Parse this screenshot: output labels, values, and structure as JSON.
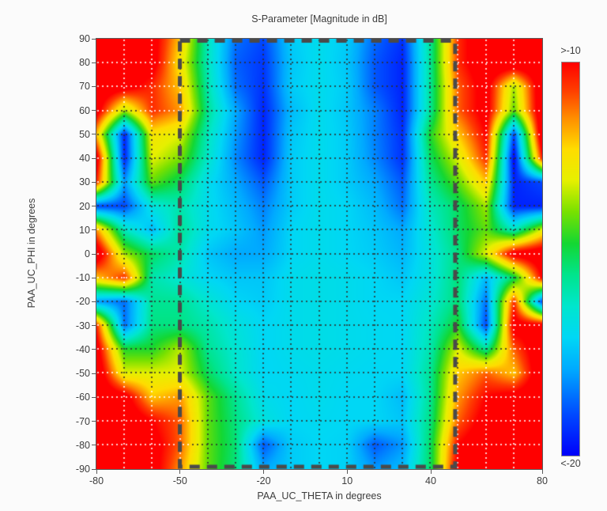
{
  "chart_data": {
    "type": "heatmap",
    "title": "S-Parameter [Magnitude in dB]",
    "xlabel": "PAA_UC_THETA in degrees",
    "ylabel": "PAA_UC_PHI in degrees",
    "xlim": [
      -80,
      80
    ],
    "ylim": [
      -90,
      90
    ],
    "x_ticks": [
      -80,
      -50,
      -20,
      10,
      40,
      80
    ],
    "y_ticks": [
      90,
      80,
      70,
      60,
      50,
      40,
      30,
      20,
      10,
      0,
      -10,
      -20,
      -30,
      -40,
      -50,
      -60,
      -70,
      -80,
      -90
    ],
    "grid_step_degrees": 10,
    "grid_on": true,
    "colorbar": {
      "max_label": ">-10",
      "min_label": "<-20",
      "vmax": -10,
      "vmin": -20,
      "position": "right"
    },
    "colormap_stops": [
      [
        0.0,
        [
          0,
          0,
          250
        ]
      ],
      [
        0.1,
        [
          0,
          70,
          255
        ]
      ],
      [
        0.22,
        [
          0,
          170,
          255
        ]
      ],
      [
        0.3,
        [
          0,
          215,
          245
        ]
      ],
      [
        0.38,
        [
          0,
          230,
          205
        ]
      ],
      [
        0.46,
        [
          0,
          228,
          140
        ]
      ],
      [
        0.54,
        [
          20,
          215,
          50
        ]
      ],
      [
        0.62,
        [
          120,
          225,
          0
        ]
      ],
      [
        0.7,
        [
          230,
          240,
          0
        ]
      ],
      [
        0.78,
        [
          255,
          220,
          0
        ]
      ],
      [
        0.86,
        [
          255,
          140,
          0
        ]
      ],
      [
        0.93,
        [
          255,
          60,
          0
        ]
      ],
      [
        1.0,
        [
          255,
          0,
          0
        ]
      ]
    ],
    "selection_box": {
      "theta_min": -50,
      "theta_max": 49,
      "phi_min": -90,
      "phi_max": 90
    },
    "thetas": [
      -80,
      -70,
      -60,
      -50,
      -40,
      -30,
      -20,
      -10,
      0,
      10,
      20,
      30,
      40,
      50,
      60,
      70,
      80
    ],
    "phis": [
      90,
      80,
      70,
      60,
      50,
      40,
      30,
      20,
      10,
      0,
      -10,
      -20,
      -30,
      -40,
      -50,
      -60,
      -70,
      -80,
      -90
    ],
    "values_db": [
      [
        -9,
        -9,
        -9.5,
        -12,
        -16,
        -18.5,
        -19,
        -17.2,
        -16.8,
        -17.2,
        -18.6,
        -19.3,
        -15.5,
        -10.5,
        -9,
        -9,
        -9
      ],
      [
        -9,
        -9,
        -9.5,
        -12.5,
        -16,
        -18.7,
        -19.2,
        -17.3,
        -16.8,
        -17.3,
        -18.8,
        -19.5,
        -15.5,
        -10.5,
        -9,
        -9,
        -9
      ],
      [
        -9,
        -9.5,
        -10.5,
        -12,
        -15.8,
        -18.5,
        -19.3,
        -17.2,
        -16.8,
        -17.2,
        -18.8,
        -19.5,
        -15.5,
        -11,
        -9.5,
        -13.5,
        -9
      ],
      [
        -9.5,
        -13.5,
        -10.5,
        -11.5,
        -15.5,
        -17.8,
        -19.5,
        -17.5,
        -16.8,
        -17.3,
        -18.3,
        -19.5,
        -15.5,
        -11,
        -9.5,
        -14,
        -9
      ],
      [
        -12,
        -19.5,
        -12.5,
        -13,
        -16,
        -18,
        -19.5,
        -17.3,
        -16.8,
        -17.2,
        -18.3,
        -19.3,
        -14.5,
        -12,
        -10,
        -19,
        -9
      ],
      [
        -9.5,
        -19.5,
        -13,
        -13.8,
        -16.2,
        -18.2,
        -19.5,
        -17.2,
        -16.8,
        -17.2,
        -18.2,
        -19.3,
        -15,
        -13,
        -10.5,
        -20,
        -10.5
      ],
      [
        -10.5,
        -18,
        -14,
        -15,
        -16.8,
        -17.8,
        -18.8,
        -17.2,
        -16.8,
        -17.2,
        -17.8,
        -18.8,
        -15.5,
        -14,
        -12,
        -19.5,
        -19
      ],
      [
        -19,
        -19,
        -16.5,
        -15.8,
        -16.8,
        -17.5,
        -18.3,
        -17.2,
        -16.8,
        -17,
        -17.5,
        -18.5,
        -16,
        -15,
        -13.5,
        -19.5,
        -19.5
      ],
      [
        -11.5,
        -16,
        -17.5,
        -15.5,
        -16.8,
        -17.3,
        -18,
        -17,
        -16.8,
        -17,
        -17.3,
        -17.8,
        -16.3,
        -15,
        -14,
        -16,
        -13
      ],
      [
        -9,
        -13.5,
        -15,
        -15.8,
        -17.3,
        -17.8,
        -17.8,
        -17,
        -16.8,
        -17,
        -17.2,
        -17.6,
        -16.5,
        -15.3,
        -13,
        -9.5,
        -9
      ],
      [
        -12,
        -10.5,
        -15.8,
        -16.3,
        -17,
        -17.3,
        -17.3,
        -16.8,
        -16.7,
        -16.8,
        -17,
        -17.3,
        -16.5,
        -15.2,
        -17.5,
        -15,
        -10
      ],
      [
        -18,
        -18.5,
        -15.5,
        -15.5,
        -16.3,
        -17,
        -17.2,
        -16.8,
        -16.7,
        -16.8,
        -17,
        -17,
        -16.3,
        -15.2,
        -18.5,
        -10.5,
        -19
      ],
      [
        -10.5,
        -18.5,
        -15.3,
        -15.3,
        -15.8,
        -16.5,
        -17,
        -16.8,
        -16.7,
        -16.8,
        -16.9,
        -17,
        -16,
        -14.5,
        -19,
        -9.5,
        -9.5
      ],
      [
        -9.5,
        -14.5,
        -14.5,
        -13.3,
        -15.5,
        -16.3,
        -17,
        -16.8,
        -16.7,
        -16.8,
        -16.9,
        -17,
        -15.8,
        -13,
        -15.5,
        -11,
        -9
      ],
      [
        -9,
        -13,
        -13,
        -13,
        -15,
        -16.2,
        -17,
        -16.9,
        -16.8,
        -16.9,
        -17,
        -17,
        -15.5,
        -12,
        -11,
        -12,
        -9
      ],
      [
        -9,
        -9.5,
        -12,
        -11.5,
        -14,
        -15.5,
        -16.8,
        -17,
        -16.8,
        -17,
        -17,
        -17.5,
        -15.5,
        -11.5,
        -10,
        -9.5,
        -9
      ],
      [
        -9,
        -9,
        -10,
        -11,
        -14,
        -15.3,
        -16.5,
        -17,
        -16.9,
        -17,
        -17,
        -17.3,
        -15.3,
        -11,
        -9.5,
        -9,
        -9
      ],
      [
        -9,
        -9,
        -9.5,
        -11,
        -14,
        -15.2,
        -18.8,
        -17.2,
        -17,
        -17.1,
        -18.8,
        -18,
        -15,
        -10,
        -9,
        -9,
        -9
      ],
      [
        -9,
        -9,
        -9.5,
        -11.5,
        -14,
        -15.3,
        -17.8,
        -17.2,
        -17,
        -17.1,
        -18,
        -17.5,
        -15,
        -9.5,
        -9,
        -9,
        -9
      ]
    ],
    "style": {
      "dash_color": "#4a4a4a",
      "grid_dot_dark": "#2d2d2d",
      "grid_dot_light": "#ffffff",
      "plot_border_color": "#5a5a5a",
      "text_color": "#3d3d3d",
      "background": "#fbfbfb"
    }
  }
}
